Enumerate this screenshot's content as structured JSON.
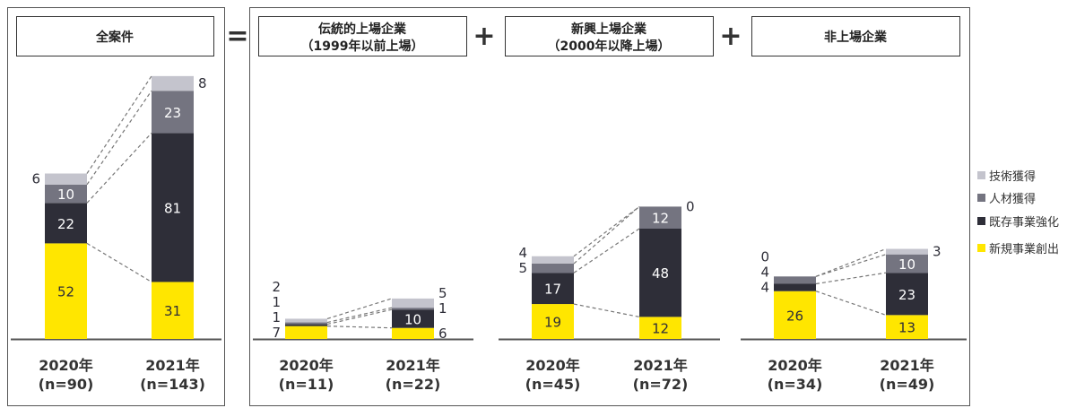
{
  "chart_data": {
    "type": "bar",
    "stacked": true,
    "series_names": [
      "新規事業創出",
      "既存事業強化",
      "人材獲得",
      "技術獲得"
    ],
    "colors": {
      "新規事業創出": "#ffe600",
      "既存事業強化": "#2e2e38",
      "人材獲得": "#747480",
      "技術獲得": "#c4c4cd"
    },
    "legend": {
      "position": "right",
      "entries": [
        "技術獲得",
        "人材獲得",
        "既存事業強化",
        "新規事業創出"
      ]
    },
    "operators": [
      "=",
      "+",
      "+"
    ],
    "panels": [
      {
        "title": [
          "全案件"
        ],
        "bars": [
          {
            "year": "2020年",
            "n": "(n=90)",
            "values": [
              52,
              22,
              10,
              6
            ]
          },
          {
            "year": "2021年",
            "n": "(n=143)",
            "values": [
              31,
              81,
              23,
              8
            ]
          }
        ]
      },
      {
        "title": [
          "伝統的上場企業",
          "（1999年以前上場）"
        ],
        "bars": [
          {
            "year": "2020年",
            "n": "(n=11)",
            "values": [
              7,
              1,
              1,
              2
            ]
          },
          {
            "year": "2021年",
            "n": "(n=22)",
            "values": [
              6,
              10,
              1,
              5
            ]
          }
        ]
      },
      {
        "title": [
          "新興上場企業",
          "（2000年以降上場）"
        ],
        "bars": [
          {
            "year": "2020年",
            "n": "(n=45)",
            "values": [
              19,
              17,
              5,
              4
            ]
          },
          {
            "year": "2021年",
            "n": "(n=72)",
            "values": [
              12,
              48,
              12,
              0
            ]
          }
        ]
      },
      {
        "title": [
          "非上場企業"
        ],
        "bars": [
          {
            "year": "2020年",
            "n": "(n=34)",
            "values": [
              26,
              4,
              4,
              0
            ]
          },
          {
            "year": "2021年",
            "n": "(n=49)",
            "values": [
              13,
              23,
              10,
              3
            ]
          }
        ]
      }
    ]
  }
}
